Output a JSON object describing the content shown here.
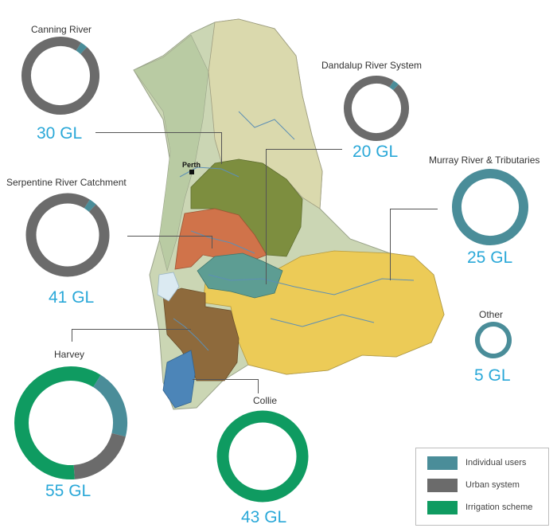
{
  "colors": {
    "individual": "#4a8d99",
    "urban": "#6b6b6b",
    "irrigation": "#0f9b61",
    "value_text": "#2aa8d8"
  },
  "map": {
    "city_label": "Perth"
  },
  "catchments": [
    {
      "id": "canning",
      "name": "Canning River",
      "value": "30 GL",
      "shares": {
        "individual": 0.03,
        "urban": 0.97,
        "irrigation": 0
      }
    },
    {
      "id": "dandalup",
      "name": "Dandalup River System",
      "value": "20 GL",
      "shares": {
        "individual": 0.03,
        "urban": 0.97,
        "irrigation": 0
      }
    },
    {
      "id": "serpentine",
      "name": "Serpentine River Catchment",
      "value": "41 GL",
      "shares": {
        "individual": 0.03,
        "urban": 0.97,
        "irrigation": 0
      }
    },
    {
      "id": "murray",
      "name": "Murray River & Tributaries",
      "value": "25 GL",
      "shares": {
        "individual": 1.0,
        "urban": 0,
        "irrigation": 0
      }
    },
    {
      "id": "other",
      "name": "Other",
      "value": "5 GL",
      "shares": {
        "individual": 1.0,
        "urban": 0,
        "irrigation": 0
      }
    },
    {
      "id": "harvey",
      "name": "Harvey",
      "value": "55 GL",
      "shares": {
        "individual": 0.2,
        "urban": 0.2,
        "irrigation": 0.6
      }
    },
    {
      "id": "collie",
      "name": "Collie",
      "value": "43 GL",
      "shares": {
        "individual": 0,
        "urban": 0,
        "irrigation": 1.0
      }
    }
  ],
  "legend": {
    "items": [
      {
        "key": "individual",
        "label": "Individual users"
      },
      {
        "key": "urban",
        "label": "Urban system"
      },
      {
        "key": "irrigation",
        "label": "Irrigation scheme"
      }
    ]
  }
}
